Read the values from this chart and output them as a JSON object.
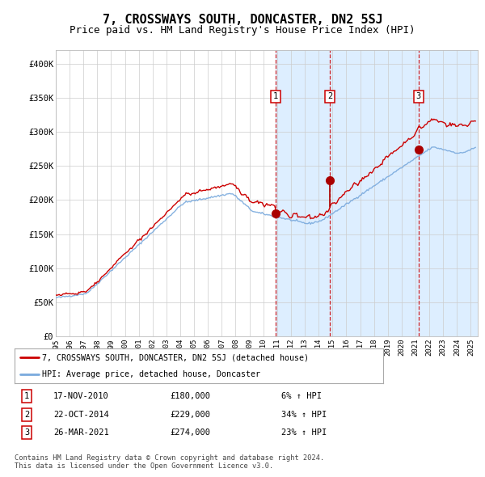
{
  "title": "7, CROSSWAYS SOUTH, DONCASTER, DN2 5SJ",
  "subtitle": "Price paid vs. HM Land Registry's House Price Index (HPI)",
  "ylabel_ticks": [
    "£0",
    "£50K",
    "£100K",
    "£150K",
    "£200K",
    "£250K",
    "£300K",
    "£350K",
    "£400K"
  ],
  "ytick_values": [
    0,
    50000,
    100000,
    150000,
    200000,
    250000,
    300000,
    350000,
    400000
  ],
  "ylim": [
    0,
    420000
  ],
  "xlim_start": 1995.0,
  "xlim_end": 2025.5,
  "red_line_color": "#cc0000",
  "blue_line_color": "#7aaadd",
  "shade_color": "#ddeeff",
  "marker_color": "#aa0000",
  "purchase_dates": [
    2010.88,
    2014.81,
    2021.23
  ],
  "purchase_prices": [
    180000,
    229000,
    274000
  ],
  "purchase_labels": [
    "1",
    "2",
    "3"
  ],
  "legend_red_label": "7, CROSSWAYS SOUTH, DONCASTER, DN2 5SJ (detached house)",
  "legend_blue_label": "HPI: Average price, detached house, Doncaster",
  "table_rows": [
    [
      "1",
      "17-NOV-2010",
      "£180,000",
      "6% ↑ HPI"
    ],
    [
      "2",
      "22-OCT-2014",
      "£229,000",
      "34% ↑ HPI"
    ],
    [
      "3",
      "26-MAR-2021",
      "£274,000",
      "23% ↑ HPI"
    ]
  ],
  "footer": "Contains HM Land Registry data © Crown copyright and database right 2024.\nThis data is licensed under the Open Government Licence v3.0.",
  "background_color": "#ffffff",
  "grid_color": "#cccccc",
  "title_fontsize": 11,
  "subtitle_fontsize": 9
}
